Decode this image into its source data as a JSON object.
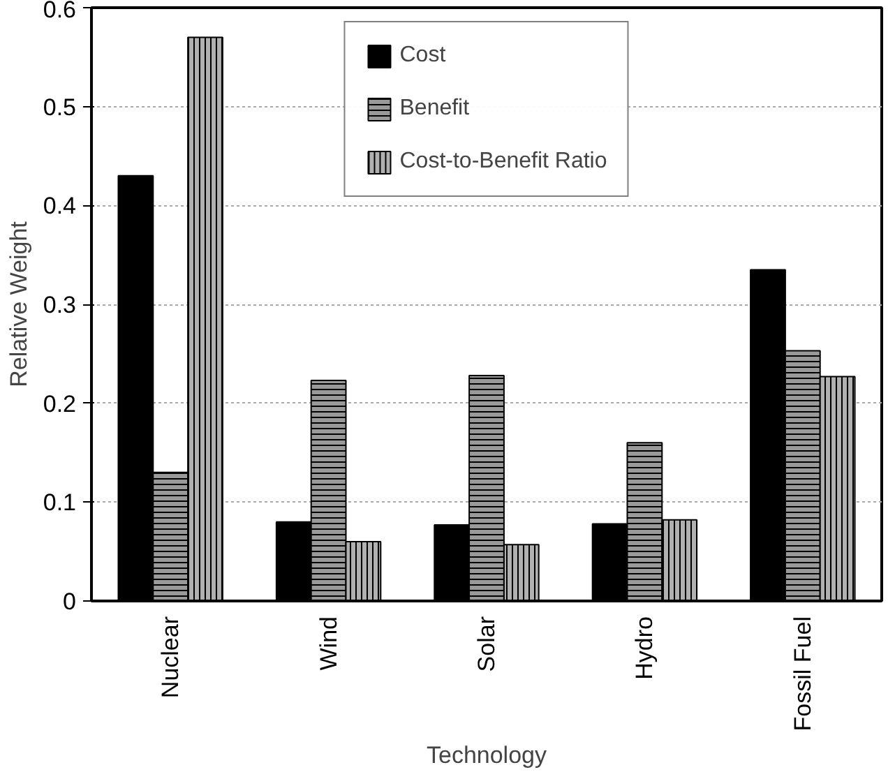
{
  "chart_data": {
    "type": "bar",
    "xlabel": "Technology",
    "ylabel": "Relative Weight",
    "categories": [
      "Nuclear",
      "Wind",
      "Solar",
      "Hydro",
      "Fossil Fuel"
    ],
    "series": [
      {
        "name": "Cost",
        "color": "#000000",
        "values": [
          0.43,
          0.08,
          0.077,
          0.078,
          0.335
        ]
      },
      {
        "name": "Benefit",
        "color": "#9a9a9a",
        "values": [
          0.13,
          0.223,
          0.228,
          0.16,
          0.253
        ]
      },
      {
        "name": "Cost-to-Benefit Ratio",
        "color": "#b0b0b0",
        "values": [
          0.57,
          0.06,
          0.057,
          0.082,
          0.227
        ]
      }
    ],
    "ylim": [
      0,
      0.6
    ],
    "yticks": [
      0,
      0.1,
      0.2,
      0.3,
      0.4,
      0.5,
      0.6
    ],
    "grid": "y",
    "legend": "top"
  }
}
